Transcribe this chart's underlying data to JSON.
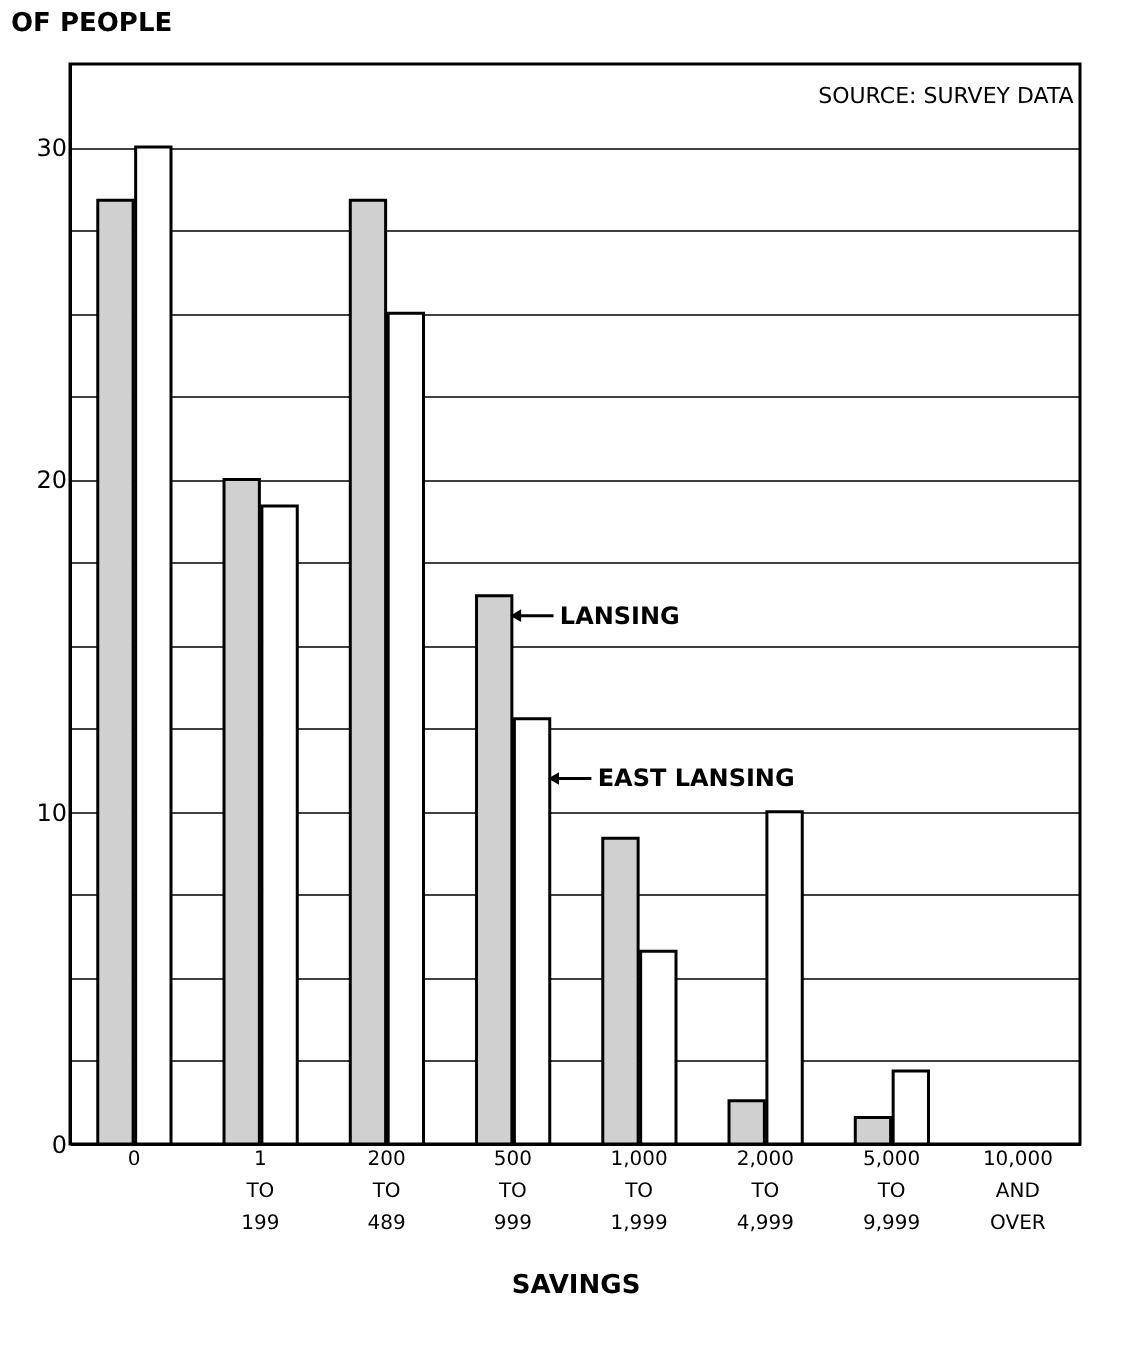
{
  "chart_data": {
    "type": "bar",
    "ylabel": "OF PEOPLE",
    "xlabel": "SAVINGS",
    "categories": [
      "0",
      "1\nTO\n199",
      "200\nTO\n489",
      "500\nTO\n999",
      "1,000\nTO\n1,999",
      "2,000\nTO\n4,999",
      "5,000\nTO\n9,999",
      "10,000\nAND\nOVER"
    ],
    "series": [
      {
        "name": "LANSING",
        "color": "#d0d0d0",
        "values": [
          28.4,
          20.0,
          28.4,
          16.5,
          9.2,
          1.3,
          0.8,
          null
        ]
      },
      {
        "name": "EAST LANSING",
        "color": "#ffffff",
        "values": [
          30.0,
          19.2,
          25.0,
          12.8,
          5.8,
          10.0,
          2.2,
          null
        ]
      }
    ],
    "ylim": [
      0,
      32.5
    ],
    "yticks": [
      0,
      {
        "value": 2.5,
        "label": null
      },
      {
        "value": 5,
        "label": null
      },
      {
        "value": 7.5,
        "label": null
      },
      10,
      {
        "value": 12.5,
        "label": null
      },
      {
        "value": 15,
        "label": null
      },
      {
        "value": 17.5,
        "label": null
      },
      20,
      {
        "value": 22.5,
        "label": null
      },
      {
        "value": 25,
        "label": null
      },
      {
        "value": 27.5,
        "label": null
      },
      30
    ],
    "grid": "y",
    "legend": "center",
    "annotations": [
      "SOURCE:  SURVEY DATA"
    ]
  }
}
